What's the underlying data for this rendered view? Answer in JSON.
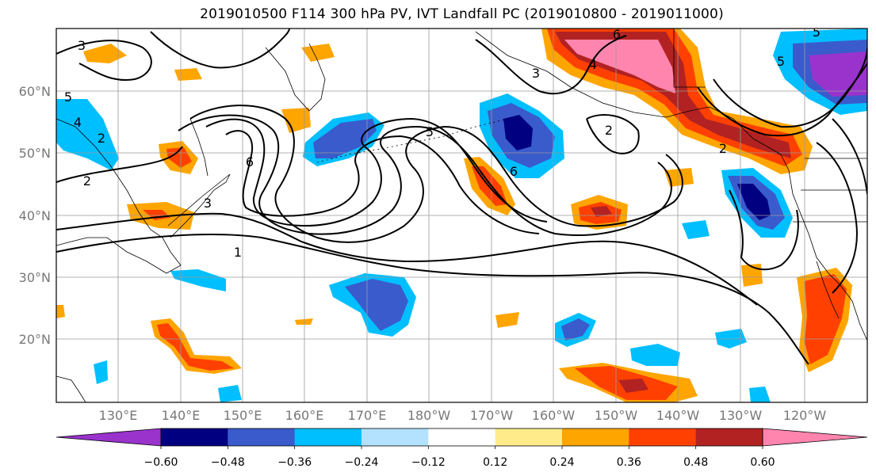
{
  "title": "2019010500 F114 300 hPa PV, IVT Landfall PC (2019010800 - 2019011000)",
  "lat_labels": [
    "60°N",
    "50°N",
    "40°N",
    "30°N",
    "20°N"
  ],
  "lon_labels": [
    "130°E",
    "140°E",
    "150°E",
    "160°E",
    "170°E",
    "180°W",
    "170°W",
    "160°W",
    "150°W",
    "140°W",
    "130°W",
    "120°W"
  ],
  "colorbar": {
    "colors": [
      "#9933cc",
      "#000080",
      "#3a5bcc",
      "#00bfff",
      "#b3e2ff",
      "#ffffff",
      "#ffeb8a",
      "#ffa500",
      "#ff4000",
      "#b22222",
      "#ff85ae"
    ],
    "tick_labels": [
      "−0.60",
      "−0.48",
      "−0.36",
      "−0.24",
      "−0.12",
      "0.12",
      "0.24",
      "0.36",
      "0.48",
      "0.60"
    ]
  },
  "contour_labels": [
    "3",
    "6",
    "4",
    "3",
    "5",
    "5",
    "4",
    "2",
    "6",
    "5",
    "6",
    "2",
    "3",
    "1",
    "2",
    "5",
    "2"
  ]
}
